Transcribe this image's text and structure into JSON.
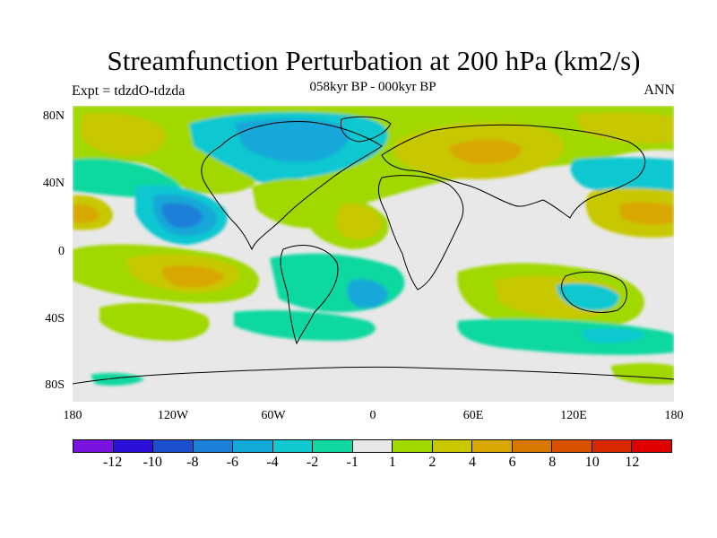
{
  "title": "Streamfunction Perturbation at 200 hPa (km2/s)",
  "subtitle": "058kyr BP - 000kyr BP",
  "left_label": "Expt = tdzdO-tdzda",
  "right_label": "ANN",
  "lat_labels": [
    "80N",
    "40N",
    "0",
    "40S",
    "80S"
  ],
  "lon_labels": [
    "180",
    "120W",
    "60W",
    "0",
    "60E",
    "120E",
    "180"
  ],
  "colorbar": {
    "colors": [
      "#7a12e0",
      "#2a10d8",
      "#1a4fd0",
      "#1a80d8",
      "#12a8d8",
      "#10c8d0",
      "#10d8a0",
      "#e8e8e8",
      "#a0d800",
      "#c8c800",
      "#d8a800",
      "#d87800",
      "#d85000",
      "#d82800",
      "#e00000"
    ],
    "labels": [
      "-12",
      "-10",
      "-8",
      "-6",
      "-4",
      "-2",
      "-1",
      "1",
      "2",
      "4",
      "6",
      "8",
      "10",
      "12"
    ]
  }
}
